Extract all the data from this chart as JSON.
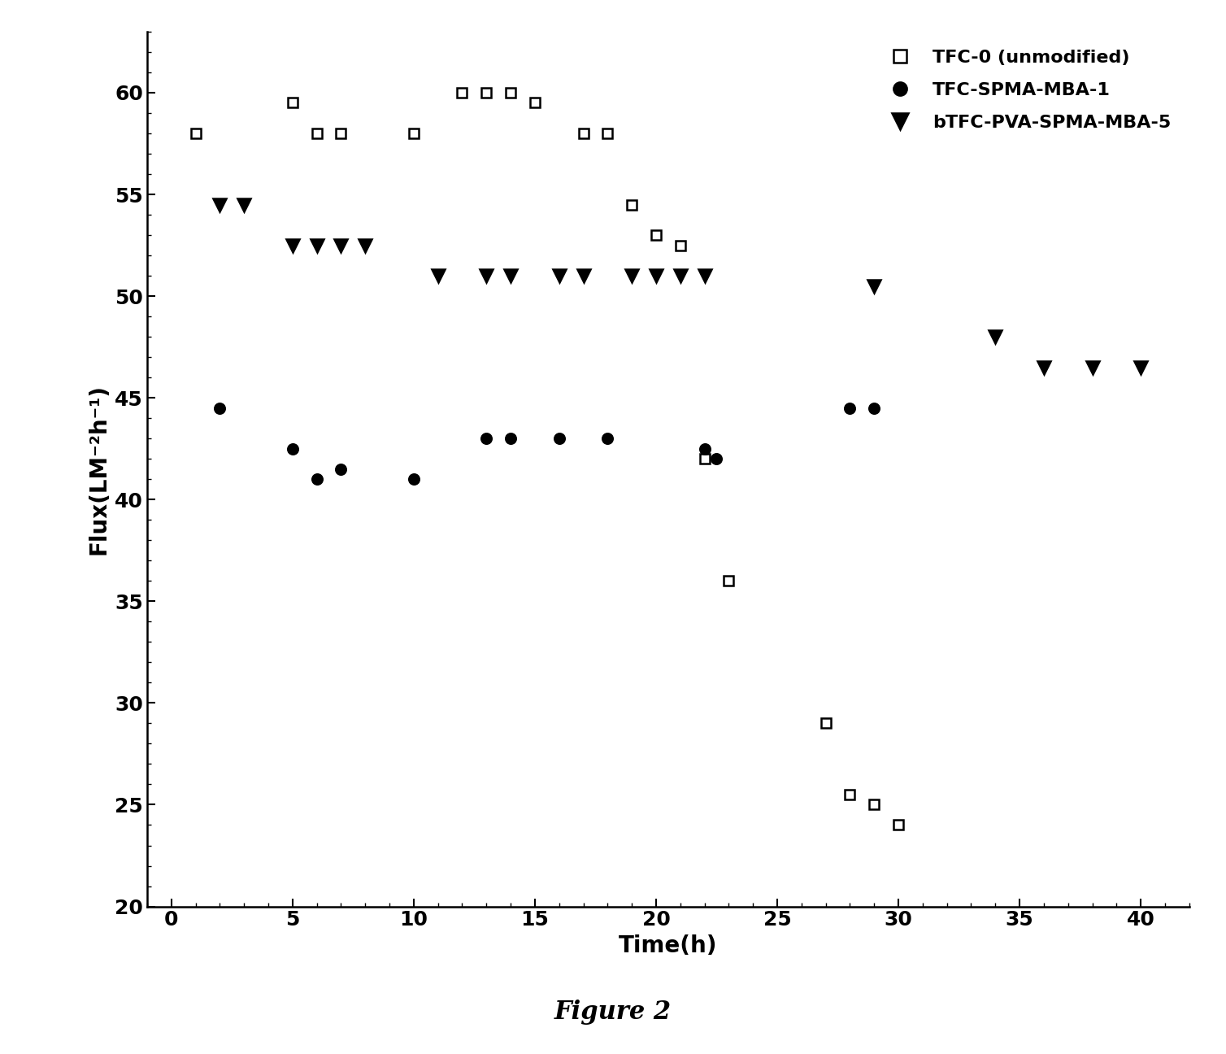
{
  "title": "Figure 2",
  "xlabel": "Time(h)",
  "ylabel": "Flux(LM⁻²h⁻¹)",
  "xlim": [
    -1,
    42
  ],
  "ylim": [
    20,
    63
  ],
  "xticks": [
    0,
    5,
    10,
    15,
    20,
    25,
    30,
    35,
    40
  ],
  "yticks": [
    20,
    25,
    30,
    35,
    40,
    45,
    50,
    55,
    60
  ],
  "series": [
    {
      "label": "TFC-0 (unmodified)",
      "marker": "s",
      "color": "black",
      "facecolor": "white",
      "markersize": 9,
      "x": [
        1,
        5,
        6,
        7,
        10,
        12,
        13,
        14,
        15,
        17,
        18,
        19,
        20,
        21,
        22,
        23,
        27,
        28,
        29,
        30
      ],
      "y": [
        58,
        59.5,
        58,
        58,
        58,
        60,
        60,
        60,
        59.5,
        58,
        58,
        54.5,
        53,
        52.5,
        42,
        36,
        29,
        25.5,
        25,
        24
      ]
    },
    {
      "label": "TFC-SPMA-MBA-1",
      "marker": "o",
      "color": "black",
      "facecolor": "black",
      "markersize": 9,
      "x": [
        2,
        5,
        6,
        7,
        10,
        13,
        14,
        16,
        18,
        22,
        22.5,
        28,
        29
      ],
      "y": [
        44.5,
        42.5,
        41,
        41.5,
        41,
        43,
        43,
        43,
        43,
        42.5,
        42,
        44.5,
        44.5
      ]
    },
    {
      "label": "bTFC-PVA-SPMA-MBA-5",
      "marker": "v",
      "color": "black",
      "facecolor": "black",
      "markersize": 11,
      "x": [
        2,
        3,
        5,
        6,
        7,
        8,
        11,
        13,
        14,
        16,
        17,
        19,
        20,
        21,
        22,
        29,
        34,
        36,
        38,
        40
      ],
      "y": [
        54.5,
        54.5,
        52.5,
        52.5,
        52.5,
        52.5,
        51,
        51,
        51,
        51,
        51,
        51,
        51,
        51,
        51,
        50.5,
        48,
        46.5,
        46.5,
        46.5
      ]
    }
  ]
}
